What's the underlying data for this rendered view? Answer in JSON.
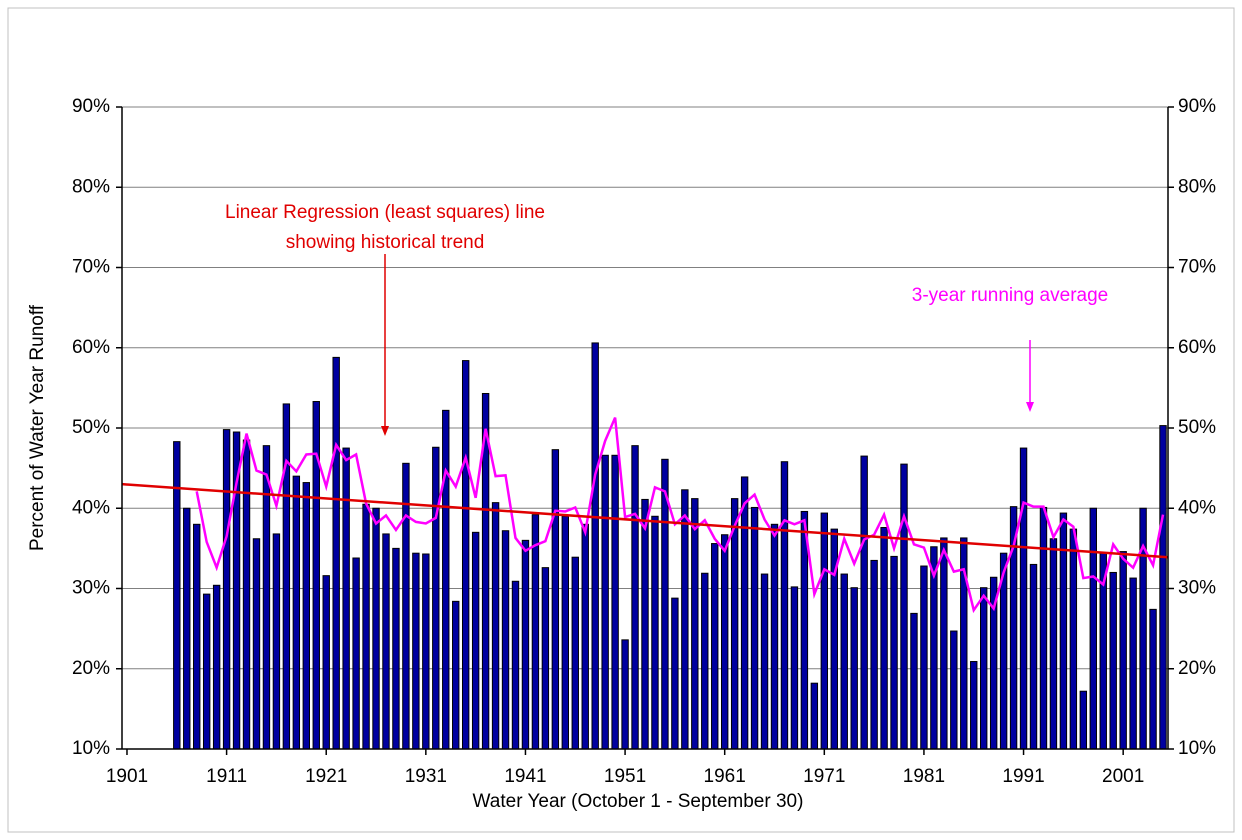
{
  "chart_data": {
    "type": "bar",
    "xlabel": "Water Year  (October 1 - September 30)",
    "ylabel": "Percent of Water Year Runoff",
    "categories": [
      "1901",
      null,
      null,
      null,
      null,
      null,
      null,
      null,
      null,
      null,
      "1911",
      null,
      null,
      null,
      null,
      null,
      null,
      null,
      null,
      null,
      "1921",
      null,
      null,
      null,
      null,
      null,
      null,
      null,
      null,
      null,
      "1931",
      null,
      null,
      null,
      null,
      null,
      null,
      null,
      null,
      null,
      "1941",
      null,
      null,
      null,
      null,
      null,
      null,
      null,
      null,
      null,
      "1951",
      null,
      null,
      null,
      null,
      null,
      null,
      null,
      null,
      null,
      "1961",
      null,
      null,
      null,
      null,
      null,
      null,
      null,
      null,
      null,
      "1971",
      null,
      null,
      null,
      null,
      null,
      null,
      null,
      null,
      null,
      "1981",
      null,
      null,
      null,
      null,
      null,
      null,
      null,
      null,
      null,
      "1991",
      null,
      null,
      null,
      null,
      null,
      null,
      null,
      null,
      null,
      "2001",
      null,
      null,
      null,
      null
    ],
    "series": [
      {
        "type": "bar",
        "color": "#0000a0",
        "values": [
          null,
          null,
          null,
          null,
          null,
          48.3,
          40,
          38,
          29.3,
          30.4,
          49.8,
          49.5,
          48.5,
          36.2,
          47.8,
          36.8,
          53,
          44,
          43.2,
          53.3,
          31.6,
          58.8,
          47.5,
          33.8,
          40.5,
          40,
          36.8,
          35,
          45.6,
          34.4,
          34.3,
          47.6,
          52.2,
          28.4,
          58.4,
          37,
          54.3,
          40.7,
          37.2,
          30.9,
          36,
          39.2,
          32.6,
          47.3,
          39,
          33.9,
          38,
          60.6,
          46.6,
          46.6,
          23.6,
          47.8,
          41.1,
          39,
          46.1,
          28.8,
          42.3,
          41.2,
          31.9,
          35.6,
          36.7,
          41.2,
          43.9,
          40.1,
          31.8,
          38,
          45.8,
          30.2,
          39.6,
          18.2,
          39.4,
          37.4,
          31.8,
          30.1,
          46.5,
          33.5,
          37.6,
          34,
          45.5,
          26.9,
          32.8,
          35.2,
          36.3,
          24.7,
          36.3,
          20.9,
          30.1,
          31.4,
          34.4,
          40.2,
          47.5,
          33,
          40.1,
          36.2,
          39.4,
          37.4,
          17.2,
          40,
          34.4,
          32,
          34.6,
          31.3,
          40,
          27.4,
          50.3
        ]
      },
      {
        "type": "line",
        "color": "#ff00ff",
        "values": [
          null,
          null,
          null,
          null,
          null,
          null,
          null,
          42.1,
          35.8,
          32.6,
          36.5,
          43.2,
          49.3,
          44.7,
          44.2,
          40.3,
          45.9,
          44.6,
          46.7,
          46.8,
          42.7,
          47.9,
          46.0,
          46.7,
          40.6,
          38.1,
          39.1,
          37.3,
          39.1,
          38.3,
          38.1,
          38.8,
          44.7,
          42.7,
          46.3,
          41.3,
          49.9,
          44,
          44.1,
          36.3,
          34.7,
          35.4,
          35.9,
          39.7,
          39.6,
          40.1,
          37,
          44.2,
          48.4,
          51.3,
          38.9,
          39.3,
          37.5,
          42.6,
          42.1,
          38,
          39.1,
          37.4,
          38.5,
          36.2,
          34.7,
          37.8,
          40.6,
          41.7,
          38.6,
          36.6,
          38.5,
          38,
          38.5,
          29.3,
          32.4,
          31.7,
          36.2,
          33.1,
          36.1,
          36.7,
          39.2,
          35,
          39,
          35.5,
          35.1,
          31.6,
          34.8,
          32.1,
          32.4,
          27.3,
          29.1,
          27.5,
          32,
          35.3,
          40.7,
          40.2,
          40.2,
          36.4,
          38.6,
          37.7,
          31.3,
          31.5,
          30.5,
          35.5,
          33.7,
          32.6,
          35.3,
          32.9,
          39.2
        ]
      }
    ],
    "trend": {
      "color": "#e00000",
      "values": [
        43,
        33.9
      ]
    },
    "annotations": [
      {
        "lines": [
          "Linear Regression (least squares) line",
          "showing historical trend"
        ],
        "color": "#e00000"
      },
      {
        "lines": [
          "3-year running average"
        ],
        "color": "#ff00ff"
      }
    ],
    "ylim": [
      10,
      90
    ],
    "yticks": [
      {
        "value": 10,
        "label": "10%"
      },
      {
        "value": 20,
        "label": "20%"
      },
      {
        "value": 30,
        "label": "30%"
      },
      {
        "value": 40,
        "label": "40%"
      },
      {
        "value": 50,
        "label": "50%"
      },
      {
        "value": 60,
        "label": "60%"
      },
      {
        "value": 70,
        "label": "70%"
      },
      {
        "value": 80,
        "label": "80%"
      },
      {
        "value": 90,
        "label": "90%"
      }
    ],
    "y2lim": [
      10,
      90
    ],
    "y2ticks": [
      {
        "value": 10,
        "label": "10%"
      },
      {
        "value": 20,
        "label": "20%"
      },
      {
        "value": 30,
        "label": "30%"
      },
      {
        "value": 40,
        "label": "40%"
      },
      {
        "value": 50,
        "label": "50%"
      },
      {
        "value": 60,
        "label": "60%"
      },
      {
        "value": 70,
        "label": "70%"
      },
      {
        "value": 80,
        "label": "80%"
      },
      {
        "value": 90,
        "label": "90%"
      }
    ],
    "grid": true
  }
}
